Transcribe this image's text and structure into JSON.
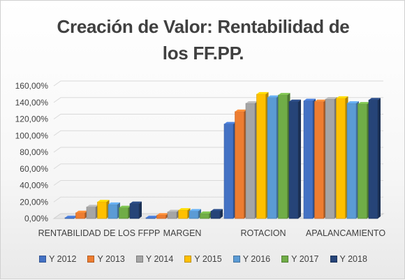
{
  "chart_data": {
    "type": "bar",
    "style": "3d-clustered-column",
    "title_lines": [
      "Creación de Valor: Rentabilidad de",
      "los FF.PP."
    ],
    "categories": [
      "RENTABILIDAD DE LOS FFPP",
      "MARGEN",
      "ROTACION",
      "APALANCAMIENTO"
    ],
    "yticks": [
      "0,00%",
      "20,00%",
      "40,00%",
      "60,00%",
      "80,00%",
      "100,00%",
      "120,00%",
      "140,00%",
      "160,00%"
    ],
    "ylim": [
      0,
      160
    ],
    "unit": "%",
    "grid": true,
    "legend_position": "bottom",
    "series": [
      {
        "name": "Y 2012",
        "color": "#4472c4",
        "values": [
          1.0,
          1.0,
          114.0,
          142.0
        ]
      },
      {
        "name": "Y 2013",
        "color": "#ed7d31",
        "values": [
          7.0,
          4.0,
          129.0,
          141.0
        ]
      },
      {
        "name": "Y 2014",
        "color": "#a5a5a5",
        "values": [
          14.0,
          8.0,
          139.0,
          144.0
        ]
      },
      {
        "name": "Y 2015",
        "color": "#ffc000",
        "values": [
          20.0,
          10.0,
          150.0,
          145.0
        ]
      },
      {
        "name": "Y 2016",
        "color": "#5b9bd5",
        "values": [
          17.0,
          9.0,
          146.0,
          139.0
        ]
      },
      {
        "name": "Y 2017",
        "color": "#70ad47",
        "values": [
          13.0,
          6.0,
          149.0,
          138.0
        ]
      },
      {
        "name": "Y 2018",
        "color": "#264478",
        "values": [
          18.0,
          9.0,
          141.0,
          143.0
        ]
      }
    ]
  }
}
